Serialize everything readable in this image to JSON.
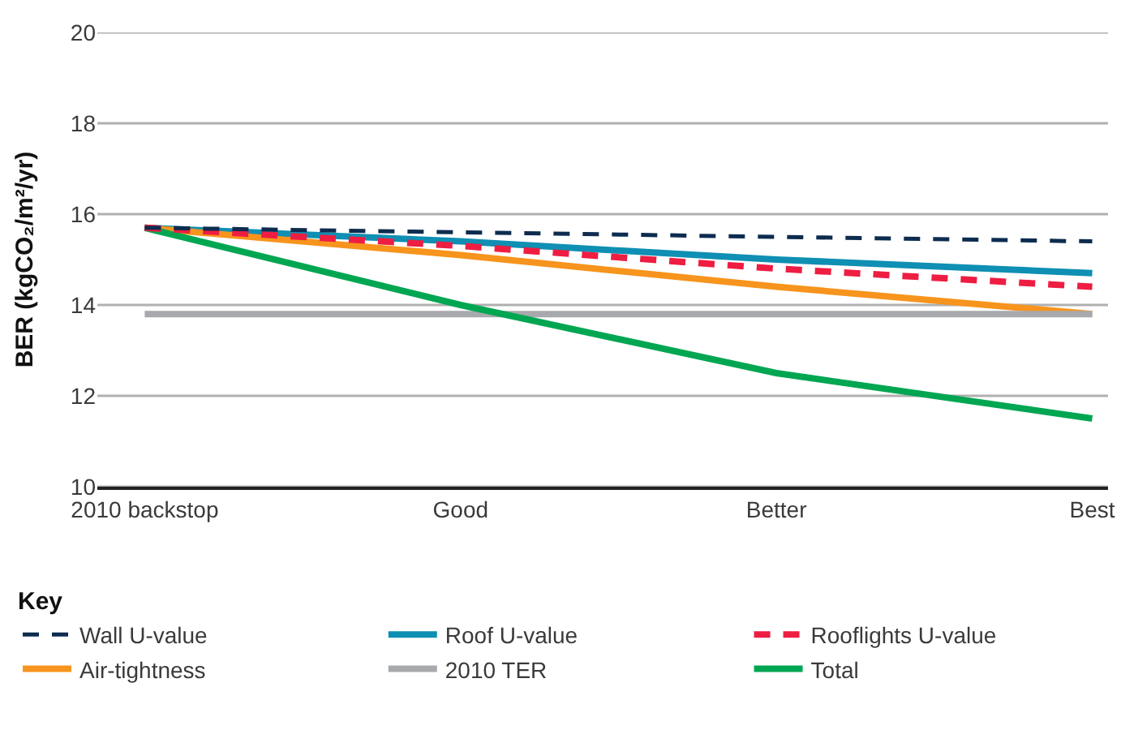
{
  "chart_data": {
    "type": "line",
    "ylabel": "BER (kgCO₂/m²/yr)",
    "legend_title": "Key",
    "categories": [
      "2010 backstop",
      "Good",
      "Better",
      "Best"
    ],
    "ylim": [
      10,
      20
    ],
    "yticks": [
      10,
      12,
      14,
      16,
      18,
      20
    ],
    "grid": "y",
    "legend": "bottom",
    "marker": "none",
    "series": [
      {
        "name": "Wall U-value",
        "color": "#0d2c4f",
        "line_style": "dashed",
        "values": [
          15.7,
          15.6,
          15.5,
          15.4
        ]
      },
      {
        "name": "Roof U-value",
        "color": "#0f8fb3",
        "line_style": "solid",
        "values": [
          15.7,
          15.4,
          15.0,
          14.7
        ]
      },
      {
        "name": "Rooflights U-value",
        "color": "#ee1d42",
        "line_style": "dashed",
        "values": [
          15.7,
          15.3,
          14.8,
          14.4
        ]
      },
      {
        "name": "Air-tightness",
        "color": "#f7941d",
        "line_style": "solid",
        "values": [
          15.7,
          15.1,
          14.4,
          13.8
        ]
      },
      {
        "name": "2010 TER",
        "color": "#a7a9ac",
        "line_style": "solid",
        "values": [
          13.8,
          13.8,
          13.8,
          13.8
        ]
      },
      {
        "name": "Total",
        "color": "#00a651",
        "line_style": "solid",
        "values": [
          15.7,
          14.0,
          12.5,
          11.5
        ]
      }
    ]
  }
}
